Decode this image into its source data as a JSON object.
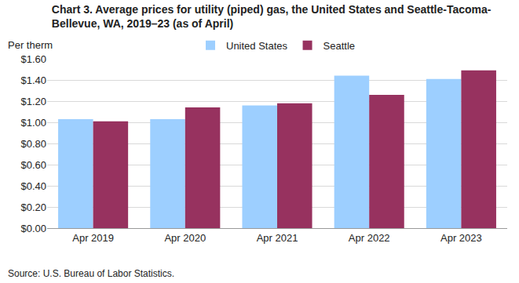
{
  "chart_data": {
    "type": "bar",
    "title": [
      "Chart 3. Average prices for utility (piped) gas, the United States and Seattle-Tacoma-",
      "Bellevue, WA, 2019–23 (as of April)"
    ],
    "y_label": "Per therm",
    "source": "Source: U.S. Bureau of Labor Statistics.",
    "categories": [
      "Apr 2019",
      "Apr 2020",
      "Apr 2021",
      "Apr 2022",
      "Apr 2023"
    ],
    "series": [
      {
        "name": "United States",
        "color": "#9dcfff",
        "values": [
          1.03,
          1.03,
          1.16,
          1.44,
          1.41
        ]
      },
      {
        "name": "Seattle",
        "color": "#97325f",
        "values": [
          1.01,
          1.14,
          1.18,
          1.26,
          1.49
        ]
      }
    ],
    "ylim": [
      0,
      1.6
    ],
    "yticks": [
      {
        "value": 0,
        "label": "$0.00"
      },
      {
        "value": 0.2,
        "label": "$0.20"
      },
      {
        "value": 0.4,
        "label": "$0.40"
      },
      {
        "value": 0.6,
        "label": "$0.60"
      },
      {
        "value": 0.8,
        "label": "$0.80"
      },
      {
        "value": 1.0,
        "label": "$1.00"
      },
      {
        "value": 1.2,
        "label": "$1.20"
      },
      {
        "value": 1.4,
        "label": "$1.40"
      },
      {
        "value": 1.6,
        "label": "$1.60"
      }
    ],
    "grid": true,
    "legend": "top"
  }
}
